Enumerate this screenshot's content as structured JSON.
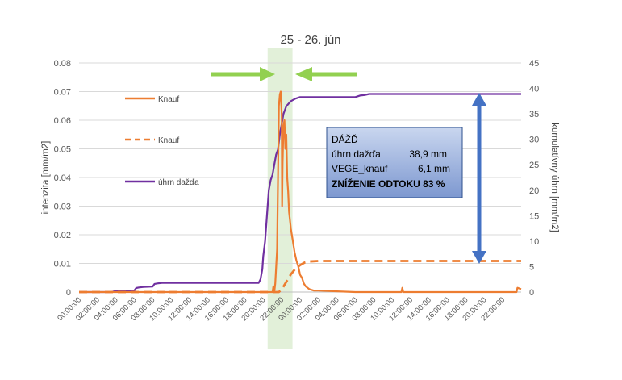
{
  "chart_data": {
    "type": "line",
    "title": "25 - 26. jún",
    "ylabel_left": "intenzita [mm/m2]",
    "ylabel_right": "kumulatívny úhrn [mm/m2]",
    "y_left_range": [
      0,
      0.08
    ],
    "y_left_ticks": [
      "0",
      "0.01",
      "0.02",
      "0.03",
      "0.04",
      "0.05",
      "0.06",
      "0.07",
      "0.08"
    ],
    "y_right_range": [
      0,
      45
    ],
    "y_right_ticks": [
      "0",
      "5",
      "10",
      "15",
      "20",
      "25",
      "30",
      "35",
      "40",
      "45"
    ],
    "x_range_hours": [
      0,
      48
    ],
    "x_tick_labels": [
      "00:00:00",
      "02:00:00",
      "04:00:00",
      "06:00:00",
      "08:00:00",
      "10:00:00",
      "12:00:00",
      "14:00:00",
      "16:00:00",
      "18:00:00",
      "20:00:00",
      "22:00:00",
      "00:00:00",
      "02:00:00",
      "04:00:00",
      "06:00:00",
      "08:00:00",
      "10:00:00",
      "12:00:00",
      "14:00:00",
      "16:00:00",
      "18:00:00",
      "20:00:00",
      "22:00:00"
    ],
    "grid": "horizontal",
    "legend_position": "left-inside",
    "series": [
      {
        "name": "Knauf",
        "style": "solid",
        "axis": "left",
        "color": "#ED7D31",
        "points": [
          [
            0,
            0
          ],
          [
            21,
            0
          ],
          [
            21.1,
            0.002
          ],
          [
            21.2,
            0
          ],
          [
            21.3,
            0.003
          ],
          [
            21.5,
            0.015
          ],
          [
            21.6,
            0.04
          ],
          [
            21.7,
            0.065
          ],
          [
            21.8,
            0.069
          ],
          [
            21.9,
            0.07
          ],
          [
            22,
            0.062
          ],
          [
            22.05,
            0.03
          ],
          [
            22.1,
            0.045
          ],
          [
            22.2,
            0.058
          ],
          [
            22.3,
            0.06
          ],
          [
            22.4,
            0.05
          ],
          [
            22.5,
            0.055
          ],
          [
            22.6,
            0.04
          ],
          [
            22.7,
            0.035
          ],
          [
            22.8,
            0.028
          ],
          [
            23,
            0.022
          ],
          [
            23.2,
            0.018
          ],
          [
            23.4,
            0.014
          ],
          [
            23.6,
            0.011
          ],
          [
            23.8,
            0.009
          ],
          [
            24,
            0.006
          ],
          [
            24.2,
            0.005
          ],
          [
            24.4,
            0.003
          ],
          [
            24.6,
            0.002
          ],
          [
            25,
            0.001
          ],
          [
            25.5,
            0.0005
          ],
          [
            26,
            0.0005
          ],
          [
            30,
            0
          ],
          [
            35,
            0
          ],
          [
            35.1,
            0.0015
          ],
          [
            35.2,
            0
          ],
          [
            47.5,
            0
          ],
          [
            47.6,
            0.0015
          ],
          [
            48,
            0.001
          ]
        ]
      },
      {
        "name": "Knauf",
        "style": "dashed",
        "axis": "right",
        "color": "#ED7D31",
        "points": [
          [
            0,
            0
          ],
          [
            21.7,
            0
          ],
          [
            22,
            0.5
          ],
          [
            22.5,
            2
          ],
          [
            23,
            3.5
          ],
          [
            23.5,
            4.6
          ],
          [
            24,
            5.3
          ],
          [
            24.5,
            5.8
          ],
          [
            25,
            6
          ],
          [
            26,
            6.1
          ],
          [
            48,
            6.1
          ]
        ]
      },
      {
        "name": "úhrn dažďa",
        "style": "solid",
        "axis": "right",
        "color": "#7030A0",
        "points": [
          [
            0,
            0
          ],
          [
            3.5,
            0
          ],
          [
            4,
            0.2
          ],
          [
            6,
            0.3
          ],
          [
            6.2,
            0.8
          ],
          [
            6.5,
            0.9
          ],
          [
            7,
            1.0
          ],
          [
            8,
            1.1
          ],
          [
            8.2,
            1.6
          ],
          [
            8.5,
            1.7
          ],
          [
            9,
            1.8
          ],
          [
            18,
            1.8
          ],
          [
            19.5,
            1.8
          ],
          [
            19.7,
            2.5
          ],
          [
            19.9,
            4.5
          ],
          [
            20,
            7
          ],
          [
            20.2,
            10
          ],
          [
            20.4,
            15
          ],
          [
            20.6,
            20
          ],
          [
            20.8,
            22
          ],
          [
            21,
            23
          ],
          [
            21.2,
            25
          ],
          [
            21.4,
            27
          ],
          [
            21.6,
            28
          ],
          [
            21.8,
            31
          ],
          [
            22,
            33
          ],
          [
            22.2,
            35
          ],
          [
            22.5,
            36.5
          ],
          [
            23,
            37.5
          ],
          [
            23.5,
            38
          ],
          [
            24,
            38.3
          ],
          [
            30,
            38.3
          ],
          [
            30.5,
            38.6
          ],
          [
            31,
            38.7
          ],
          [
            31.5,
            38.9
          ],
          [
            48,
            38.9
          ]
        ]
      }
    ],
    "annotation_box": {
      "title": "DÁŽĎ",
      "rows": [
        {
          "label": "úhrn dažďa",
          "value": "38,9 mm"
        },
        {
          "label": "VEGE_knauf",
          "value": "6,1 mm"
        }
      ],
      "bold_line": "ZNÍŽENIE ODTOKU 83 %"
    },
    "highlight_band_hours": [
      21,
      23
    ],
    "colors": {
      "highlight_band": "#E2F0D9",
      "green_arrow": "#92D050",
      "blue_arrow": "#4472C4",
      "box_fill": "#8FAADC",
      "box_border": "#2F528F"
    }
  }
}
